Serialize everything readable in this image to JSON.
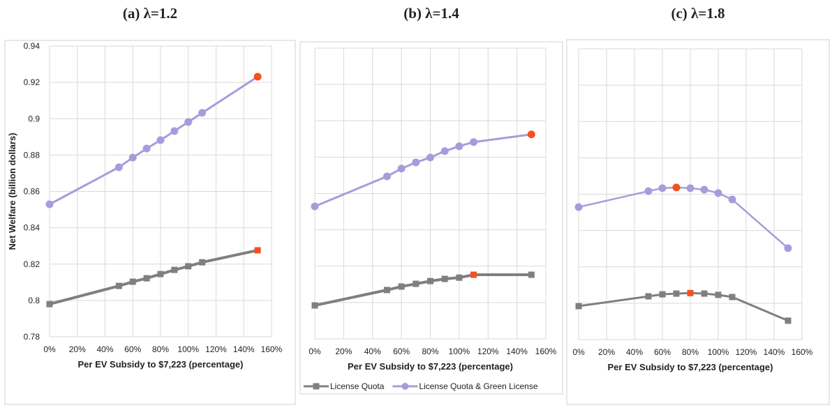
{
  "chart_data": [
    {
      "type": "line",
      "title": "(a) λ=1.2",
      "xlabel": "Per EV Subsidy to $7,223 (percentage)",
      "ylabel": "Net Welfare  (billion dollars)",
      "x": [
        0,
        50,
        60,
        70,
        80,
        90,
        100,
        110,
        150
      ],
      "xlim": [
        0,
        160
      ],
      "xticks": [
        {
          "value": 0,
          "label": "0%"
        },
        {
          "value": 20,
          "label": "20%"
        },
        {
          "value": 40,
          "label": "40%"
        },
        {
          "value": 60,
          "label": "60%"
        },
        {
          "value": 80,
          "label": "80%"
        },
        {
          "value": 100,
          "label": "100%"
        },
        {
          "value": 120,
          "label": "120%"
        },
        {
          "value": 140,
          "label": "140%"
        },
        {
          "value": 160,
          "label": "160%"
        }
      ],
      "ylim": [
        0.78,
        0.94
      ],
      "yticks": [
        0.78,
        {
          "value": 0.8,
          "label": "0.8"
        },
        0.82,
        0.84,
        0.86,
        0.88,
        {
          "value": 0.9,
          "label": "0.9"
        },
        0.92,
        0.94
      ],
      "ytick_labels": true,
      "grid": true,
      "series": [
        {
          "name": "License Quota",
          "color": "#7f7f7f",
          "marker": "square",
          "highlight_index": 8,
          "highlight_color": "#f4511e",
          "values": [
            0.798,
            0.808,
            0.8103,
            0.8122,
            0.8145,
            0.8168,
            0.8188,
            0.821,
            0.8276
          ]
        },
        {
          "name": "License Quota & Green License",
          "color": "#a59ddb",
          "marker": "circle",
          "highlight_index": 8,
          "highlight_color": "#f4511e",
          "values": [
            0.8529,
            0.8733,
            0.8786,
            0.8836,
            0.8882,
            0.8932,
            0.8982,
            0.9032,
            0.9231
          ]
        }
      ]
    },
    {
      "type": "line",
      "title": "(b) λ=1.4",
      "xlabel": "Per EV Subsidy to $7,223 (percentage)",
      "legend": "bottom",
      "x": [
        0,
        50,
        60,
        70,
        80,
        90,
        100,
        110,
        150
      ],
      "xlim": [
        0,
        160
      ],
      "xticks": [
        {
          "value": 0,
          "label": "0%"
        },
        {
          "value": 20,
          "label": "20%"
        },
        {
          "value": 40,
          "label": "40%"
        },
        {
          "value": 60,
          "label": "60%"
        },
        {
          "value": 80,
          "label": "80%"
        },
        {
          "value": 100,
          "label": "100%"
        },
        {
          "value": 120,
          "label": "120%"
        },
        {
          "value": 140,
          "label": "140%"
        },
        {
          "value": 160,
          "label": "160%"
        }
      ],
      "ylim": [
        0.78,
        0.94
      ],
      "yticks": [
        0.78,
        0.8,
        0.82,
        0.84,
        0.86,
        0.88,
        0.9,
        0.92,
        0.94
      ],
      "ytick_labels": false,
      "grid": true,
      "series": [
        {
          "name": "License Quota",
          "color": "#7f7f7f",
          "marker": "square",
          "highlight_index": 7,
          "highlight_color": "#f4511e",
          "values": [
            0.7984,
            0.8069,
            0.8088,
            0.8103,
            0.8118,
            0.813,
            0.8137,
            0.8153,
            0.8153
          ]
        },
        {
          "name": "License Quota & Green License",
          "color": "#a59ddb",
          "marker": "circle",
          "highlight_index": 8,
          "highlight_color": "#f4511e",
          "values": [
            0.8529,
            0.8694,
            0.8737,
            0.8771,
            0.8798,
            0.8833,
            0.886,
            0.8883,
            0.8925
          ]
        }
      ]
    },
    {
      "type": "line",
      "title": "(c) λ=1.8",
      "xlabel": "Per EV Subsidy to $7,223 (percentage)",
      "x": [
        0,
        50,
        60,
        70,
        80,
        90,
        100,
        110,
        150
      ],
      "xlim": [
        0,
        160
      ],
      "xticks": [
        {
          "value": 0,
          "label": "0%"
        },
        {
          "value": 20,
          "label": "20%"
        },
        {
          "value": 40,
          "label": "40%"
        },
        {
          "value": 60,
          "label": "60%"
        },
        {
          "value": 80,
          "label": "80%"
        },
        {
          "value": 100,
          "label": "100%"
        },
        {
          "value": 120,
          "label": "120%"
        },
        {
          "value": 140,
          "label": "140%"
        },
        {
          "value": 160,
          "label": "160%"
        }
      ],
      "ylim": [
        0.78,
        0.94
      ],
      "yticks": [
        0.78,
        0.8,
        0.82,
        0.84,
        0.86,
        0.88,
        0.9,
        0.92,
        0.94
      ],
      "ytick_labels": false,
      "grid": true,
      "series": [
        {
          "name": "License Quota",
          "color": "#7f7f7f",
          "marker": "square",
          "highlight_index": 4,
          "highlight_color": "#f4511e",
          "values": [
            0.7984,
            0.8038,
            0.8049,
            0.8053,
            0.8056,
            0.8053,
            0.8046,
            0.8034,
            0.7904
          ]
        },
        {
          "name": "License Quota & Green License",
          "color": "#a59ddb",
          "marker": "circle",
          "highlight_index": 3,
          "highlight_color": "#f4511e",
          "values": [
            0.8529,
            0.8617,
            0.8633,
            0.8637,
            0.8633,
            0.8625,
            0.8606,
            0.8571,
            0.8303
          ]
        }
      ]
    }
  ]
}
